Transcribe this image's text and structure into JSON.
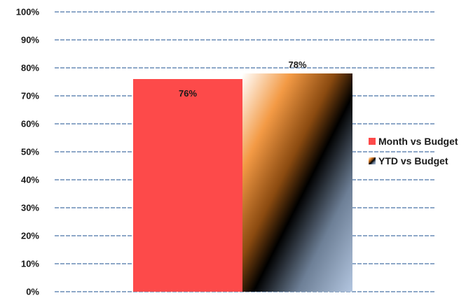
{
  "chart_data": {
    "type": "bar",
    "categories": [
      ""
    ],
    "series": [
      {
        "name": "Month vs Budget",
        "values": [
          76
        ],
        "label": "76%",
        "color": "#fd4a4a",
        "fill_style": "solid"
      },
      {
        "name": "YTD vs Budget",
        "values": [
          78
        ],
        "label": "78%",
        "color": "#f2923a",
        "fill_style": "gradient"
      }
    ],
    "ylim": [
      0,
      100
    ],
    "yticks": [
      0,
      10,
      20,
      30,
      40,
      50,
      60,
      70,
      80,
      90,
      100
    ],
    "ytick_labels": [
      "0%",
      "10%",
      "20%",
      "30%",
      "40%",
      "50%",
      "60%",
      "70%",
      "80%",
      "90%",
      "100%"
    ],
    "grid": true,
    "gridline_color": "#4a74a8",
    "legend_position": "right",
    "title": "",
    "xlabel": "",
    "ylabel": ""
  }
}
